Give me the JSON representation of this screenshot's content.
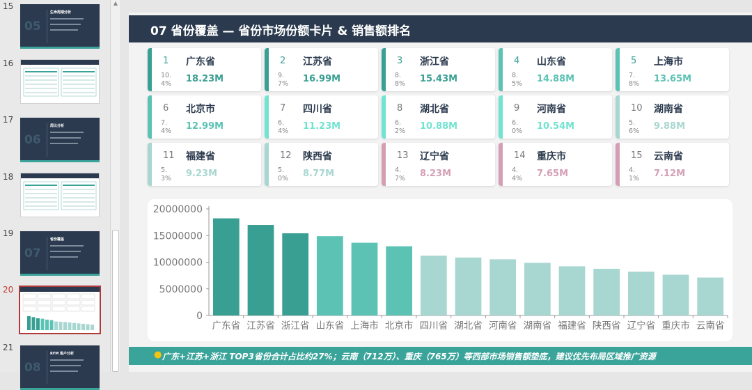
{
  "thumbnails": [
    {
      "number": "15",
      "style": "dark",
      "big_number": "05",
      "title": "生命周期分析"
    },
    {
      "number": "16",
      "style": "white"
    },
    {
      "number": "17",
      "style": "dark",
      "big_number": "06",
      "title": "周比分析"
    },
    {
      "number": "18",
      "style": "white"
    },
    {
      "number": "19",
      "style": "dark",
      "big_number": "07",
      "title": "省份覆盖"
    },
    {
      "number": "20",
      "style": "selected"
    },
    {
      "number": "21",
      "style": "dark",
      "big_number": "08",
      "title": "RFM 客户分析"
    }
  ],
  "slide": {
    "title": "07  省份覆盖 — 省份市场份额卡片 & 销售额排名",
    "cards": [
      {
        "rank": "1",
        "name": "广东省",
        "pct": "10.4%",
        "value": "18.23M",
        "color": "#3a9f93"
      },
      {
        "rank": "2",
        "name": "江苏省",
        "pct": "9.7%",
        "value": "16.99M",
        "color": "#3a9f93"
      },
      {
        "rank": "3",
        "name": "浙江省",
        "pct": "8.8%",
        "value": "15.43M",
        "color": "#3a9f93"
      },
      {
        "rank": "4",
        "name": "山东省",
        "pct": "8.5%",
        "value": "14.88M",
        "color": "#5cc2b4"
      },
      {
        "rank": "5",
        "name": "上海市",
        "pct": "7.8%",
        "value": "13.65M",
        "color": "#5cc2b4"
      },
      {
        "rank": "6",
        "name": "北京市",
        "pct": "7.4%",
        "value": "12.99M",
        "color": "#5cc2b4"
      },
      {
        "rank": "7",
        "name": "四川省",
        "pct": "6.4%",
        "value": "11.23M",
        "color": "#71e3d0"
      },
      {
        "rank": "8",
        "name": "湖北省",
        "pct": "6.2%",
        "value": "10.88M",
        "color": "#71e3d0"
      },
      {
        "rank": "9",
        "name": "河南省",
        "pct": "6.0%",
        "value": "10.54M",
        "color": "#71e3d0"
      },
      {
        "rank": "10",
        "name": "湖南省",
        "pct": "5.6%",
        "value": "9.88M",
        "color": "#a8d6d0"
      },
      {
        "rank": "11",
        "name": "福建省",
        "pct": "5.3%",
        "value": "9.23M",
        "color": "#a8d6d0"
      },
      {
        "rank": "12",
        "name": "陕西省",
        "pct": "5.0%",
        "value": "8.77M",
        "color": "#a8d6d0"
      },
      {
        "rank": "13",
        "name": "辽宁省",
        "pct": "4.7%",
        "value": "8.23M",
        "color": "#d49fb5"
      },
      {
        "rank": "14",
        "name": "重庆市",
        "pct": "4.4%",
        "value": "7.65M",
        "color": "#d49fb5"
      },
      {
        "rank": "15",
        "name": "云南省",
        "pct": "4.1%",
        "value": "7.12M",
        "color": "#d49fb5"
      }
    ],
    "footer_text": "广东+江苏+浙江 TOP3省份合计占比约27%；云南（712万）、重庆（765万）等西部市场销售额垫底，建议优先布局区域推广资源"
  },
  "chart_data": {
    "type": "bar",
    "categories": [
      "广东省",
      "江苏省",
      "浙江省",
      "山东省",
      "上海市",
      "北京市",
      "四川省",
      "湖北省",
      "河南省",
      "湖南省",
      "福建省",
      "陕西省",
      "辽宁省",
      "重庆市",
      "云南省"
    ],
    "values": [
      18230000,
      16990000,
      15430000,
      14880000,
      13650000,
      12990000,
      11230000,
      10880000,
      10540000,
      9880000,
      9230000,
      8770000,
      8230000,
      7650000,
      7120000
    ],
    "bar_colors": [
      "#3a9f93",
      "#3a9f93",
      "#3a9f93",
      "#5cc2b4",
      "#5cc2b4",
      "#5cc2b4",
      "#a8d6d0",
      "#a8d6d0",
      "#a8d6d0",
      "#a8d6d0",
      "#a8d6d0",
      "#a8d6d0",
      "#a8d6d0",
      "#a8d6d0",
      "#a8d6d0"
    ],
    "yticks": [
      0,
      5000000,
      10000000,
      15000000,
      20000000
    ],
    "ylim": [
      0,
      20000000
    ],
    "grid": false,
    "legend": "none"
  }
}
